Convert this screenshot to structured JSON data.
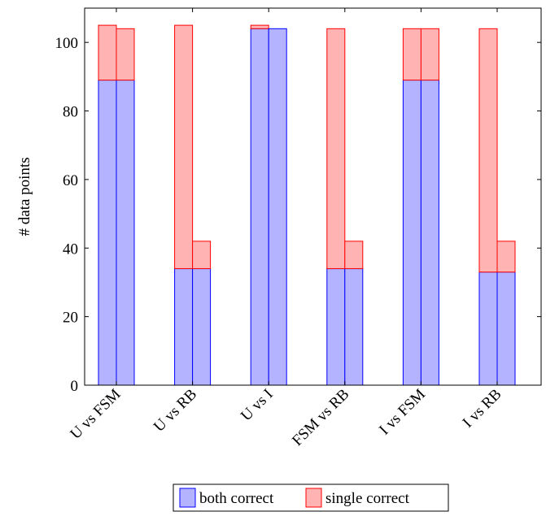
{
  "chart_data": {
    "type": "bar",
    "stacked": true,
    "categories": [
      "U vs FSM",
      "U vs RB",
      "U vs I",
      "FSM vs RB",
      "I vs FSM",
      "I vs RB"
    ],
    "bars_per_category": 2,
    "series": [
      {
        "name": "both correct",
        "color_fill": "#b3b3ff",
        "color_stroke": "#0000ff",
        "values": [
          [
            89,
            89
          ],
          [
            34,
            34
          ],
          [
            104,
            104
          ],
          [
            34,
            34
          ],
          [
            89,
            89
          ],
          [
            33,
            33
          ]
        ]
      },
      {
        "name": "single correct",
        "color_fill": "#ffb3b3",
        "color_stroke": "#ff0000",
        "values": [
          [
            16,
            15
          ],
          [
            71,
            8
          ],
          [
            1,
            0
          ],
          [
            70,
            8
          ],
          [
            15,
            15
          ],
          [
            71,
            9
          ]
        ]
      }
    ],
    "xlabel": "",
    "ylabel": "# data points",
    "ylim": [
      0,
      110
    ],
    "yticks": [
      0,
      20,
      40,
      60,
      80,
      100
    ],
    "grid": false,
    "legend_position": "bottom-center"
  }
}
